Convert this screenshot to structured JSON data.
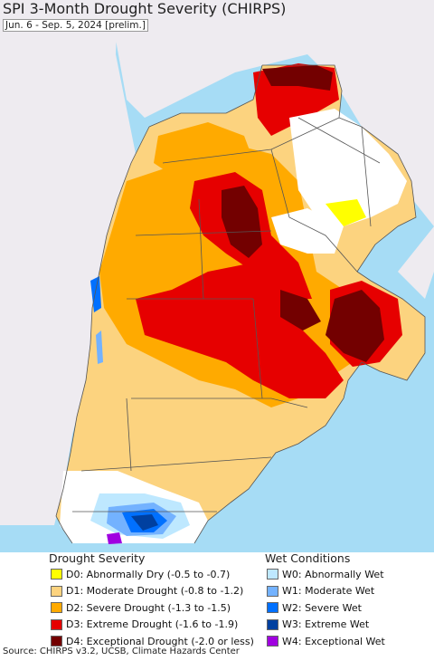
{
  "title": "SPI 3-Month Drought Severity (CHIRPS)",
  "subtitle": "Jun. 6 - Sep. 5, 2024 [prelim.]",
  "legend": {
    "drought": {
      "title": "Drought Severity",
      "items": [
        {
          "label": "D0: Abnormally Dry (-0.5 to -0.7)",
          "color": "#ffff00"
        },
        {
          "label": "D1: Moderate Drought (-0.8 to -1.2)",
          "color": "#fcd37f"
        },
        {
          "label": "D2: Severe Drought (-1.3 to -1.5)",
          "color": "#ffaa00"
        },
        {
          "label": "D3: Extreme Drought (-1.6 to -1.9)",
          "color": "#e60000"
        },
        {
          "label": "D4: Exceptional Drought (-2.0 or less)",
          "color": "#730000"
        }
      ]
    },
    "wet": {
      "title": "Wet Conditions",
      "items": [
        {
          "label": "W0: Abnormally Wet",
          "color": "#bee8ff"
        },
        {
          "label": "W1: Moderate Wet",
          "color": "#73b2ff"
        },
        {
          "label": "W2: Severe Wet",
          "color": "#0070ff"
        },
        {
          "label": "W3: Extreme Wet",
          "color": "#0040a0"
        },
        {
          "label": "W4: Exceptional Wet",
          "color": "#a000e0"
        }
      ]
    }
  },
  "source": "Source: CHIRPS v3.2, UCSB, Climate Hazards Center",
  "map_colors": {
    "ocean": "#a6dcf5",
    "outside_land": "#eeebf0",
    "no_drought": "#ffffff"
  }
}
